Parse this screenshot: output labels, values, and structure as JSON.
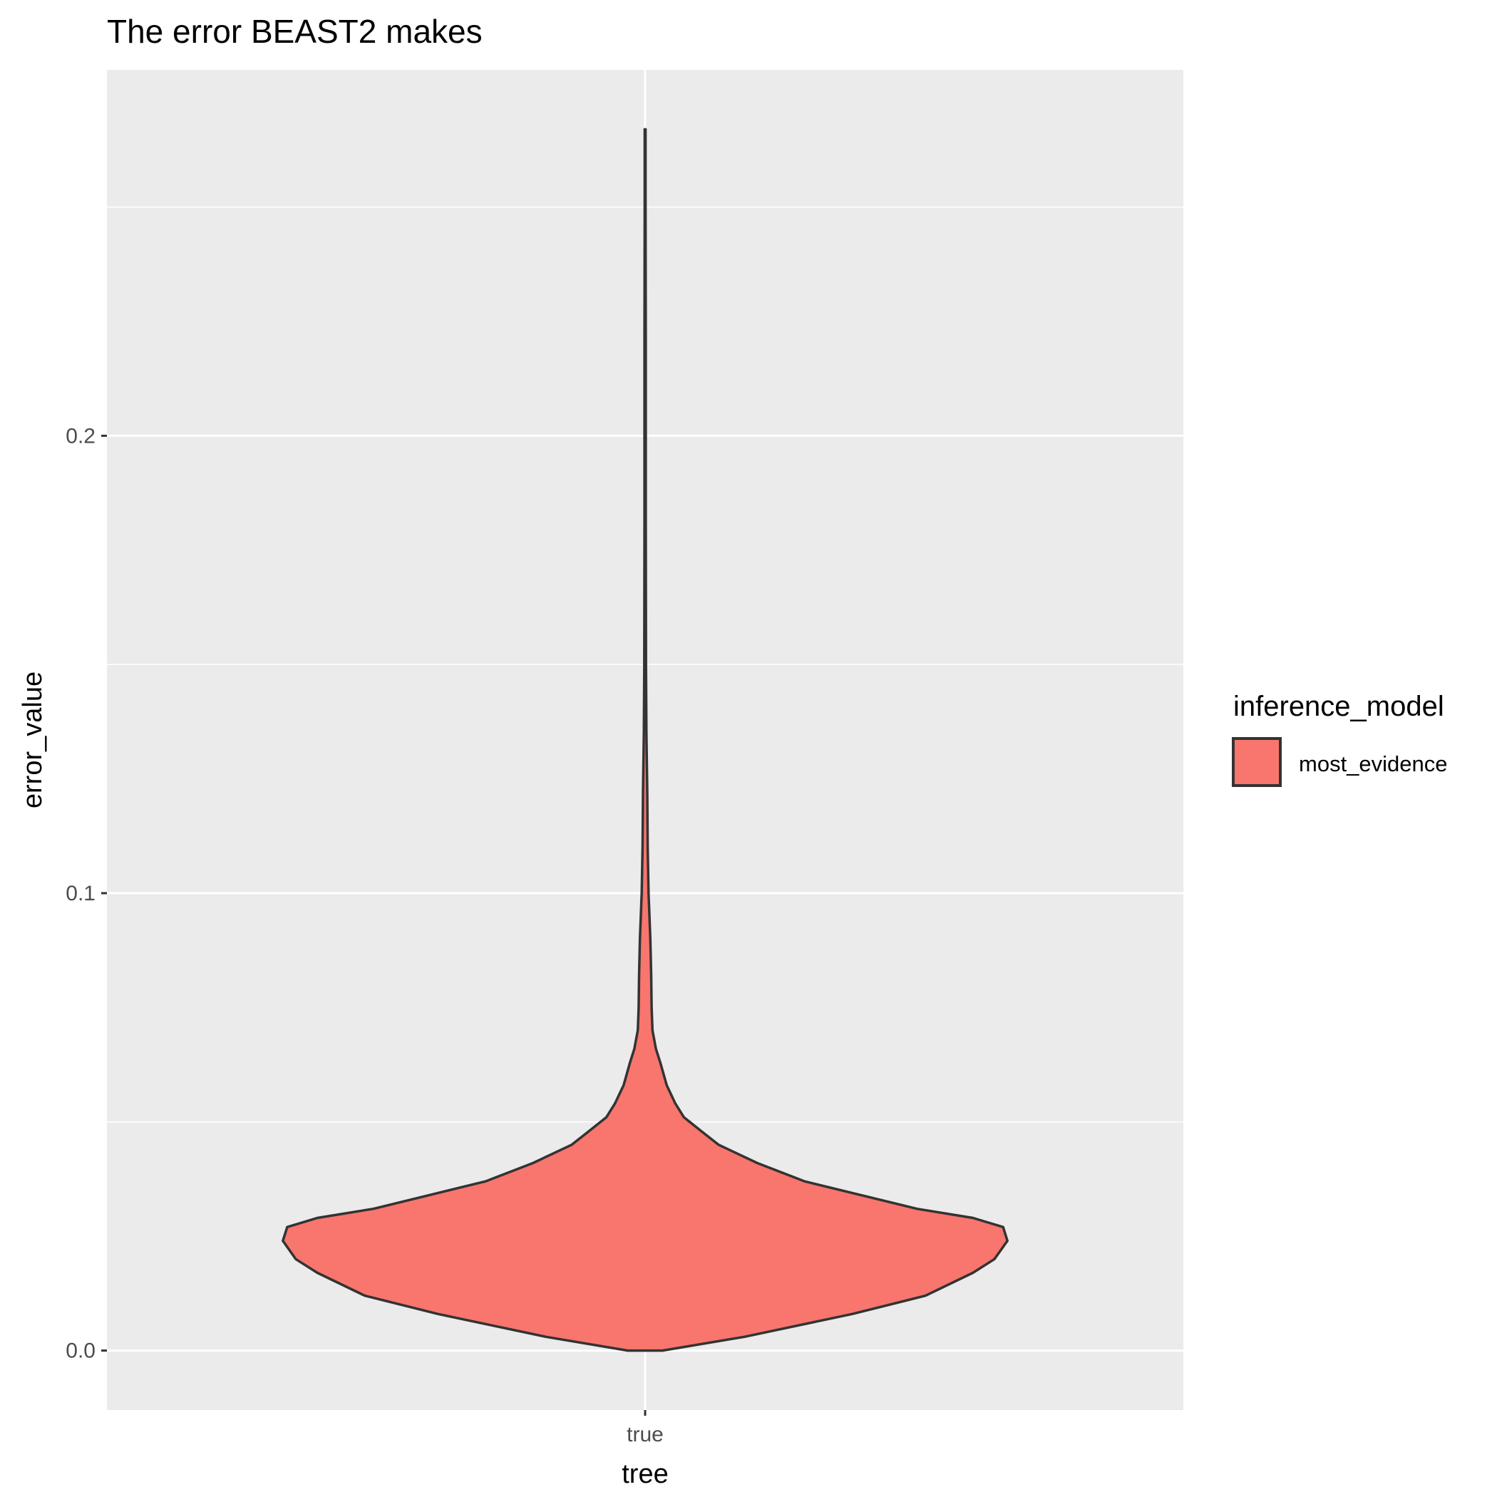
{
  "chart_data": {
    "type": "violin",
    "title": "The error BEAST2 makes",
    "xlabel": "tree",
    "ylabel": "error_value",
    "categories": [
      "true"
    ],
    "y_ticks": [
      0.0,
      0.1,
      0.2
    ],
    "y_tick_labels": [
      "0.0",
      "0.1",
      "0.2"
    ],
    "ylim": [
      -0.013,
      0.28
    ],
    "grid": true,
    "legend": {
      "title": "inference_model",
      "position": "right",
      "entries": [
        {
          "label": "most_evidence",
          "color": "#f8766d"
        }
      ]
    },
    "series": [
      {
        "name": "most_evidence",
        "category": "true",
        "fill": "#f8766d",
        "y_min": 0.0,
        "y_max": 0.267,
        "density_profile": [
          {
            "y": 0.0,
            "half_width": 0.04
          },
          {
            "y": 0.003,
            "half_width": 0.23
          },
          {
            "y": 0.008,
            "half_width": 0.48
          },
          {
            "y": 0.012,
            "half_width": 0.65
          },
          {
            "y": 0.017,
            "half_width": 0.76
          },
          {
            "y": 0.02,
            "half_width": 0.81
          },
          {
            "y": 0.024,
            "half_width": 0.84
          },
          {
            "y": 0.027,
            "half_width": 0.83
          },
          {
            "y": 0.029,
            "half_width": 0.76
          },
          {
            "y": 0.031,
            "half_width": 0.63
          },
          {
            "y": 0.034,
            "half_width": 0.5
          },
          {
            "y": 0.037,
            "half_width": 0.37
          },
          {
            "y": 0.041,
            "half_width": 0.26
          },
          {
            "y": 0.045,
            "half_width": 0.17
          },
          {
            "y": 0.048,
            "half_width": 0.13
          },
          {
            "y": 0.051,
            "half_width": 0.09
          },
          {
            "y": 0.054,
            "half_width": 0.07
          },
          {
            "y": 0.058,
            "half_width": 0.05
          },
          {
            "y": 0.063,
            "half_width": 0.035
          },
          {
            "y": 0.066,
            "half_width": 0.025
          },
          {
            "y": 0.07,
            "half_width": 0.017
          },
          {
            "y": 0.075,
            "half_width": 0.015
          },
          {
            "y": 0.082,
            "half_width": 0.014
          },
          {
            "y": 0.09,
            "half_width": 0.012
          },
          {
            "y": 0.1,
            "half_width": 0.008
          },
          {
            "y": 0.11,
            "half_width": 0.006
          },
          {
            "y": 0.122,
            "half_width": 0.005
          },
          {
            "y": 0.135,
            "half_width": 0.003
          },
          {
            "y": 0.15,
            "half_width": 0.002
          },
          {
            "y": 0.18,
            "half_width": 0.0015
          },
          {
            "y": 0.22,
            "half_width": 0.0015
          },
          {
            "y": 0.25,
            "half_width": 0.001
          },
          {
            "y": 0.267,
            "half_width": 0.001
          }
        ]
      }
    ]
  }
}
